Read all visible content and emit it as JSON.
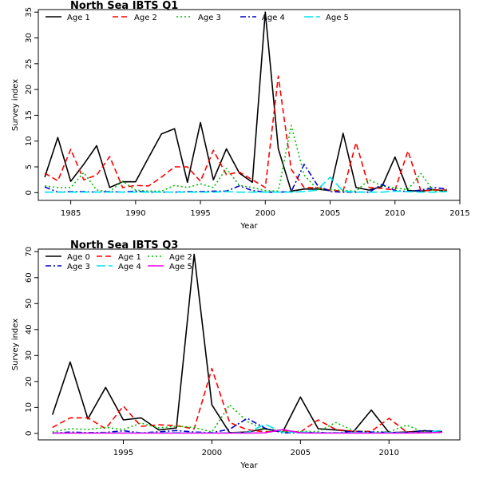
{
  "chart_data": [
    {
      "type": "line",
      "title": "North Sea IBTS Q1",
      "xlabel": "Year",
      "ylabel": "Survey index",
      "xlim": [
        1982.5,
        2015
      ],
      "ylim": [
        -1.5,
        35.5
      ],
      "xticks": [
        1985,
        1990,
        1995,
        2000,
        2005,
        2010,
        2015
      ],
      "yticks": [
        0,
        5,
        10,
        15,
        20,
        25,
        30,
        35
      ],
      "legend": "top-left, horizontal",
      "x": [
        1983,
        1984,
        1985,
        1986,
        1987,
        1988,
        1989,
        1990,
        1991,
        1992,
        1993,
        1994,
        1995,
        1996,
        1997,
        1998,
        1999,
        2000,
        2001,
        2002,
        2003,
        2004,
        2005,
        2006,
        2007,
        2008,
        2009,
        2010,
        2011,
        2012,
        2013,
        2014
      ],
      "series": [
        {
          "name": "Age 1",
          "color": "#000000",
          "dash": "solid",
          "values": [
            3.0,
            10.7,
            2.2,
            5.5,
            9.1,
            1.0,
            2.1,
            2.1,
            6.8,
            11.4,
            12.4,
            2.0,
            13.6,
            2.5,
            8.5,
            3.8,
            2.0,
            35.0,
            8.5,
            0.3,
            0.7,
            0.7,
            0.4,
            11.5,
            1.0,
            0.5,
            1.2,
            6.9,
            0.4,
            0.3,
            0.6,
            0.3
          ]
        },
        {
          "name": "Age 2",
          "color": "#ff0000",
          "dash": "dashed",
          "values": [
            3.8,
            2.3,
            8.4,
            2.5,
            3.4,
            7.0,
            1.0,
            1.4,
            1.3,
            3.0,
            5.0,
            5.0,
            2.2,
            8.2,
            3.5,
            4.0,
            2.5,
            1.0,
            22.6,
            4.5,
            1.0,
            1.0,
            0.5,
            0.3,
            9.7,
            1.0,
            0.8,
            0.5,
            8.1,
            0.3,
            0.5,
            0.5
          ]
        },
        {
          "name": "Age 3",
          "color": "#00c000",
          "dash": "dotted",
          "values": [
            1.3,
            1.0,
            1.0,
            3.9,
            0.5,
            0.2,
            2.2,
            0.5,
            0.3,
            0.3,
            1.4,
            1.0,
            1.7,
            1.0,
            4.7,
            1.4,
            1.0,
            0.4,
            0.3,
            13.0,
            3.4,
            0.7,
            0.6,
            0.4,
            0.3,
            2.5,
            1.3,
            0.9,
            0.6,
            3.7,
            0.2,
            0.5
          ]
        },
        {
          "name": "Age 4",
          "color": "#0000cc",
          "dash": "dashdot",
          "values": [
            1.1,
            0.1,
            0.2,
            0.2,
            0.1,
            0.2,
            0.1,
            0.3,
            0.1,
            0.1,
            0.1,
            0.2,
            0.2,
            0.3,
            0.3,
            1.3,
            0.4,
            0.1,
            0.1,
            0.2,
            5.5,
            1.5,
            0.2,
            0.1,
            0.1,
            0.1,
            1.6,
            0.4,
            0.2,
            0.5,
            1.0,
            0.7
          ]
        },
        {
          "name": "Age 5",
          "color": "#00e5ee",
          "dash": "longdash",
          "values": [
            0.1,
            0.1,
            0.1,
            0.1,
            0.1,
            0.1,
            0.1,
            0.1,
            0.1,
            0.1,
            0.1,
            0.1,
            0.1,
            0.1,
            0.2,
            0.1,
            0.1,
            0.1,
            0.1,
            0.1,
            0.2,
            0.5,
            3.0,
            0.3,
            0.1,
            0.1,
            0.1,
            0.3,
            0.2,
            0.1,
            0.1,
            0.2
          ]
        }
      ]
    },
    {
      "type": "line",
      "title": "North Sea IBTS Q3",
      "xlabel": "Year",
      "ylabel": "Survey index",
      "xlim": [
        1990.2,
        2014.0
      ],
      "ylim": [
        -2.5,
        71
      ],
      "xticks": [
        1995,
        2000,
        2005,
        2010
      ],
      "yticks": [
        0,
        10,
        20,
        30,
        40,
        50,
        60,
        70
      ],
      "legend": "top-left, three columns",
      "x": [
        1991,
        1992,
        1993,
        1994,
        1995,
        1996,
        1997,
        1998,
        1999,
        2000,
        2001,
        2002,
        2003,
        2004,
        2005,
        2006,
        2007,
        2008,
        2009,
        2010,
        2011,
        2012,
        2013
      ],
      "series": [
        {
          "name": "Age 0",
          "color": "#000000",
          "dash": "solid",
          "values": [
            7.2,
            27.5,
            5.6,
            17.7,
            5.2,
            6.0,
            1.3,
            2.1,
            69.0,
            11.0,
            0.3,
            0.5,
            1.8,
            0.6,
            14.0,
            1.8,
            1.3,
            0.7,
            9.0,
            0.3,
            0.5,
            1.0,
            0.5
          ]
        },
        {
          "name": "Age 1",
          "color": "#ff0000",
          "dash": "dashed",
          "values": [
            2.3,
            6.0,
            6.0,
            1.8,
            10.5,
            2.7,
            3.3,
            3.0,
            1.7,
            25.0,
            4.2,
            1.4,
            0.6,
            1.0,
            0.5,
            5.2,
            1.5,
            0.8,
            0.8,
            5.8,
            0.5,
            0.4,
            0.5
          ]
        },
        {
          "name": "Age 2",
          "color": "#00c000",
          "dash": "dotted",
          "values": [
            0.5,
            1.8,
            1.5,
            2.3,
            1.5,
            4.0,
            2.1,
            2.8,
            2.3,
            0.5,
            11.0,
            4.5,
            1.5,
            0.5,
            0.8,
            0.7,
            4.2,
            1.0,
            0.6,
            0.6,
            3.2,
            0.3,
            0.3
          ]
        },
        {
          "name": "Age 3",
          "color": "#0000cc",
          "dash": "dashdot",
          "values": [
            0.1,
            0.5,
            0.3,
            0.4,
            1.0,
            0.2,
            0.6,
            1.1,
            0.5,
            0.3,
            1.6,
            5.8,
            2.0,
            0.2,
            0.3,
            0.3,
            0.2,
            0.8,
            0.5,
            0.4,
            0.3,
            1.1,
            0.7
          ]
        },
        {
          "name": "Age 4",
          "color": "#00e5ee",
          "dash": "longdash",
          "values": [
            0.1,
            0.1,
            0.1,
            0.2,
            0.2,
            0.2,
            0.2,
            0.3,
            0.2,
            0.2,
            0.2,
            0.3,
            3.5,
            0.4,
            0.5,
            0.2,
            0.2,
            0.3,
            0.2,
            0.3,
            0.2,
            0.3,
            1.2
          ]
        },
        {
          "name": "Age 5",
          "color": "#ee00ee",
          "dash": "solid",
          "values": [
            0.1,
            0.1,
            0.1,
            0.1,
            0.1,
            0.1,
            0.1,
            0.1,
            0.1,
            0.1,
            0.1,
            0.1,
            0.2,
            1.5,
            0.2,
            0.1,
            0.1,
            0.1,
            0.1,
            0.1,
            0.1,
            0.2,
            0.4
          ]
        }
      ]
    }
  ]
}
